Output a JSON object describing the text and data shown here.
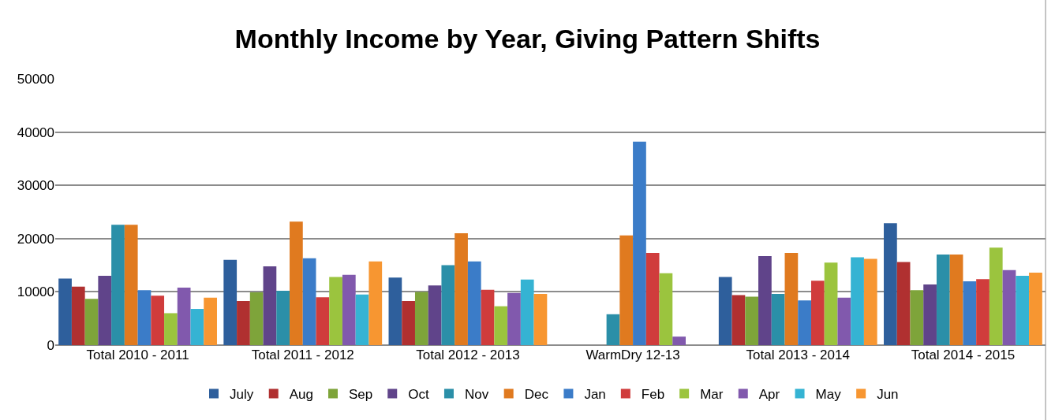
{
  "chart_data": {
    "type": "bar",
    "title": "Monthly Income by Year, Giving Pattern Shifts",
    "categories": [
      "Total 2010 - 2011",
      "Total 2011 - 2012",
      "Total 2012 - 2013",
      "WarmDry 12-13",
      "Total 2013 - 2014",
      "Total 2014 - 2015"
    ],
    "series": [
      {
        "name": "July",
        "color": "#2e5f9c",
        "values": [
          12500,
          16000,
          12700,
          null,
          12800,
          22900
        ]
      },
      {
        "name": "Aug",
        "color": "#b03030",
        "values": [
          11000,
          8300,
          8300,
          null,
          9400,
          15600
        ]
      },
      {
        "name": "Sep",
        "color": "#7ea43a",
        "values": [
          8700,
          9900,
          10000,
          null,
          9100,
          10300
        ]
      },
      {
        "name": "Oct",
        "color": "#60448a",
        "values": [
          13000,
          14800,
          11200,
          null,
          16700,
          11400
        ]
      },
      {
        "name": "Nov",
        "color": "#2b8fa8",
        "values": [
          22600,
          10200,
          15000,
          5800,
          9600,
          17000
        ]
      },
      {
        "name": "Dec",
        "color": "#e07a1f",
        "values": [
          22600,
          23200,
          21000,
          20600,
          17300,
          17000
        ]
      },
      {
        "name": "Jan",
        "color": "#3b7cc8",
        "values": [
          10300,
          16300,
          15700,
          38200,
          8400,
          12000
        ]
      },
      {
        "name": "Feb",
        "color": "#d03c3c",
        "values": [
          9300,
          9000,
          10400,
          17300,
          12100,
          12400
        ]
      },
      {
        "name": "Mar",
        "color": "#9bc43e",
        "values": [
          6000,
          12800,
          7300,
          13500,
          15500,
          18300
        ]
      },
      {
        "name": "Apr",
        "color": "#8159ad",
        "values": [
          10800,
          13200,
          9800,
          1600,
          8900,
          14100
        ]
      },
      {
        "name": "May",
        "color": "#35b3d3",
        "values": [
          6800,
          9500,
          12300,
          null,
          16500,
          13000
        ]
      },
      {
        "name": "Jun",
        "color": "#f79631",
        "values": [
          8900,
          15700,
          9600,
          null,
          16200,
          13600
        ]
      }
    ],
    "ylim": [
      0,
      50000
    ],
    "yticks": [
      0,
      10000,
      20000,
      30000,
      40000,
      50000
    ],
    "grid": "y",
    "legend": "bottom"
  }
}
